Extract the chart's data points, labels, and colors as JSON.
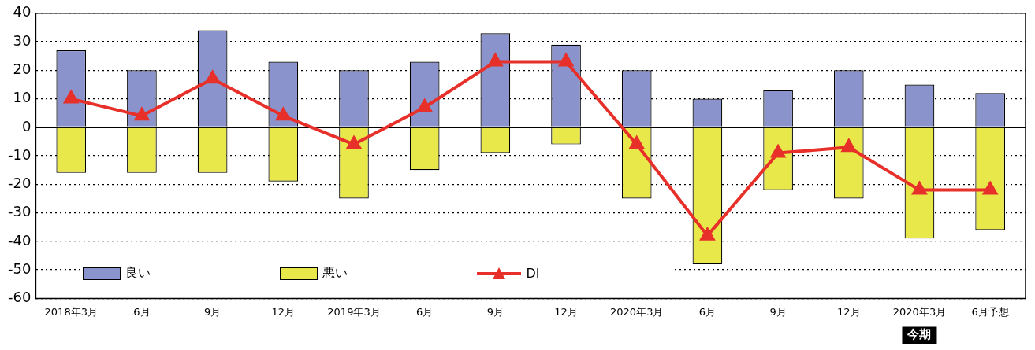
{
  "chart_data": {
    "type": "bar",
    "stacked": true,
    "categories": [
      "2018年3月",
      "6月",
      "9月",
      "12月",
      "2019年3月",
      "6月",
      "9月",
      "12月",
      "2020年3月",
      "6月",
      "9月",
      "12月",
      "2020年3月",
      "6月予想"
    ],
    "series": [
      {
        "name": "良い",
        "color": "#8b93cc",
        "values": [
          27,
          20,
          34,
          23,
          20,
          23,
          33,
          29,
          20,
          10,
          13,
          20,
          15,
          12
        ]
      },
      {
        "name": "悪い",
        "color": "#e8e84a",
        "values": [
          -16,
          -16,
          -16,
          -19,
          -25,
          -15,
          -9,
          -6,
          -25,
          -48,
          -22,
          -25,
          -39,
          -36
        ]
      },
      {
        "name": "DI",
        "type": "line",
        "color": "#e8302a",
        "marker": "triangle",
        "values": [
          10,
          4,
          17,
          4,
          -6,
          7,
          23,
          23,
          -6,
          -38,
          -9,
          -7,
          -22,
          -22
        ]
      }
    ],
    "ylim": [
      -60,
      40
    ],
    "yticks": [
      -60,
      -50,
      -40,
      -30,
      -20,
      -10,
      0,
      10,
      20,
      30,
      40
    ],
    "grid": "y",
    "legend": "bottom left",
    "annotations": [
      "今期"
    ]
  }
}
